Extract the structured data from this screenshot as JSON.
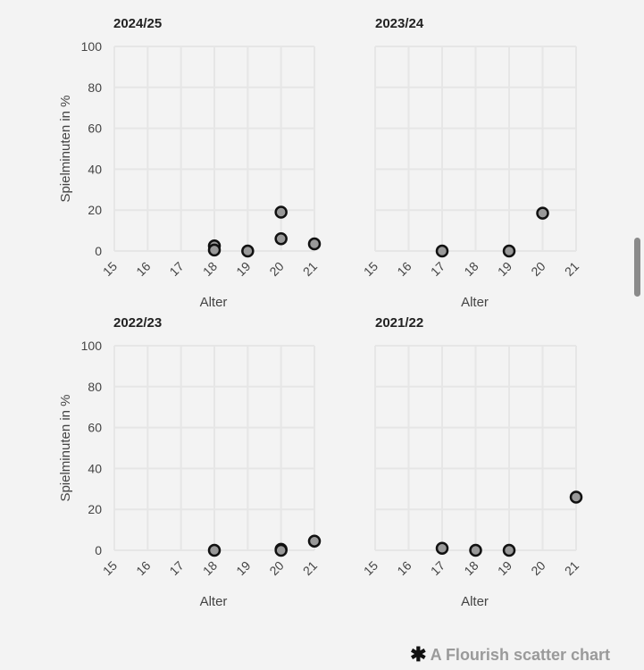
{
  "chart_data": [
    {
      "type": "scatter",
      "title": "2024/25",
      "xlabel": "Alter",
      "ylabel": "Spielminuten in %",
      "xlim": [
        15,
        21
      ],
      "ylim": [
        0,
        100
      ],
      "xticks": [
        "15",
        "16",
        "17",
        "18",
        "19",
        "20",
        "21"
      ],
      "yticks": [
        "0",
        "20",
        "40",
        "60",
        "80",
        "100"
      ],
      "points": [
        {
          "x": 18,
          "y": 2.5
        },
        {
          "x": 18,
          "y": 0.5
        },
        {
          "x": 19,
          "y": 0
        },
        {
          "x": 20,
          "y": 19
        },
        {
          "x": 20,
          "y": 6
        },
        {
          "x": 21,
          "y": 3.5
        }
      ]
    },
    {
      "type": "scatter",
      "title": "2023/24",
      "xlabel": "Alter",
      "ylabel": "",
      "xlim": [
        15,
        21
      ],
      "ylim": [
        0,
        100
      ],
      "xticks": [
        "15",
        "16",
        "17",
        "18",
        "19",
        "20",
        "21"
      ],
      "yticks": [],
      "points": [
        {
          "x": 17,
          "y": 0
        },
        {
          "x": 19,
          "y": 0
        },
        {
          "x": 20,
          "y": 18.5
        }
      ]
    },
    {
      "type": "scatter",
      "title": "2022/23",
      "xlabel": "Alter",
      "ylabel": "Spielminuten in %",
      "xlim": [
        15,
        21
      ],
      "ylim": [
        0,
        100
      ],
      "xticks": [
        "15",
        "16",
        "17",
        "18",
        "19",
        "20",
        "21"
      ],
      "yticks": [
        "0",
        "20",
        "40",
        "60",
        "80",
        "100"
      ],
      "points": [
        {
          "x": 18,
          "y": 0
        },
        {
          "x": 20,
          "y": 0.5
        },
        {
          "x": 20,
          "y": 0
        },
        {
          "x": 21,
          "y": 4.5
        }
      ]
    },
    {
      "type": "scatter",
      "title": "2021/22",
      "xlabel": "Alter",
      "ylabel": "",
      "xlim": [
        15,
        21
      ],
      "ylim": [
        0,
        100
      ],
      "xticks": [
        "15",
        "16",
        "17",
        "18",
        "19",
        "20",
        "21"
      ],
      "yticks": [],
      "points": [
        {
          "x": 17,
          "y": 1
        },
        {
          "x": 18,
          "y": 0
        },
        {
          "x": 19,
          "y": 0
        },
        {
          "x": 21,
          "y": 26
        }
      ]
    }
  ],
  "credit": {
    "icon": "flourish-asterisk-icon",
    "text": "A Flourish scatter chart"
  },
  "colors": {
    "dot_fill": "#999999",
    "dot_stroke": "#111111",
    "grid": "#e6e6e6",
    "background": "#f3f3f3"
  }
}
